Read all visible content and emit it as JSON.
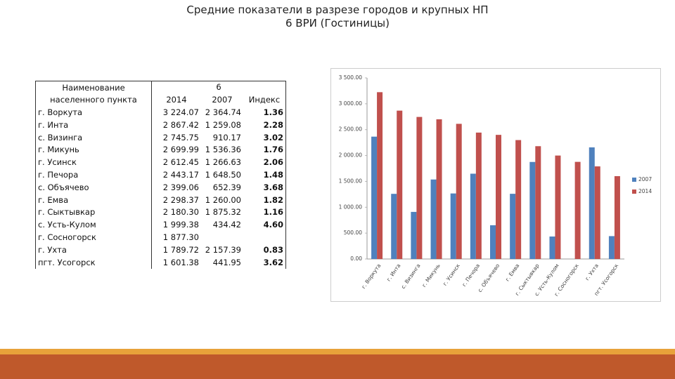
{
  "header": {
    "title": "Средние показатели в разрезе городов и крупных НП",
    "subtitle": "6 ВРИ (Гостиницы)"
  },
  "table": {
    "name_header": "Наименование населенного пункта",
    "group_header": "6",
    "columns": [
      "2014",
      "2007",
      "Индекс"
    ],
    "rows": [
      [
        "г. Воркута",
        "3 224.07",
        "2 364.74",
        "1.36"
      ],
      [
        "г. Инта",
        "2 867.42",
        "1 259.08",
        "2.28"
      ],
      [
        "с. Визинга",
        "2 745.75",
        "910.17",
        "3.02"
      ],
      [
        "г. Микунь",
        "2 699.99",
        "1 536.36",
        "1.76"
      ],
      [
        "г. Усинск",
        "2 612.45",
        "1 266.63",
        "2.06"
      ],
      [
        "г. Печора",
        "2 443.17",
        "1 648.50",
        "1.48"
      ],
      [
        "с. Объячево",
        "2 399.06",
        "652.39",
        "3.68"
      ],
      [
        "г. Емва",
        "2 298.37",
        "1 260.00",
        "1.82"
      ],
      [
        "г. Сыктывкар",
        "2 180.30",
        "1 875.32",
        "1.16"
      ],
      [
        "с. Усть-Кулом",
        "1 999.38",
        "434.42",
        "4.60"
      ],
      [
        "г. Сосногорск",
        "1 877.30",
        null,
        null
      ],
      [
        "г. Ухта",
        "1 789.72",
        "2 157.39",
        "0.83"
      ],
      [
        "пгт. Усогорск",
        "1 601.38",
        "441.95",
        "3.62"
      ]
    ]
  },
  "chart_data": {
    "type": "bar",
    "categories": [
      "г. Воркута",
      "г. Инта",
      "с. Визинга",
      "г. Микунь",
      "г. Усинск",
      "г. Печора",
      "с. Объячево",
      "г. Емва",
      "г. Сыктывкар",
      "с. Усть-Кулом",
      "г. Сосногорск",
      "г. Ухта",
      "пгт. Усогорск"
    ],
    "series": [
      {
        "name": "2007",
        "color": "#4f81bd",
        "values": [
          2364.74,
          1259.08,
          910.17,
          1536.36,
          1266.63,
          1648.5,
          652.39,
          1260.0,
          1875.32,
          434.42,
          null,
          2157.39,
          441.95
        ]
      },
      {
        "name": "2014",
        "color": "#c0504d",
        "values": [
          3224.07,
          2867.42,
          2745.75,
          2699.99,
          2612.45,
          2443.17,
          2399.06,
          2298.37,
          2180.3,
          1999.38,
          1877.3,
          1789.72,
          1601.38
        ]
      }
    ],
    "ylim": [
      0,
      3500
    ],
    "yticks": [
      {
        "value": 0,
        "label": "0.00"
      },
      {
        "value": 500,
        "label": "500.00"
      },
      {
        "value": 1000,
        "label": "1 000.00"
      },
      {
        "value": 1500,
        "label": "1 500.00"
      },
      {
        "value": 2000,
        "label": "2 000.00"
      },
      {
        "value": 2500,
        "label": "2 500.00"
      },
      {
        "value": 3000,
        "label": "3 000.00"
      },
      {
        "value": 3500,
        "label": "3 500.00"
      }
    ],
    "grid": false,
    "legend": "right"
  }
}
